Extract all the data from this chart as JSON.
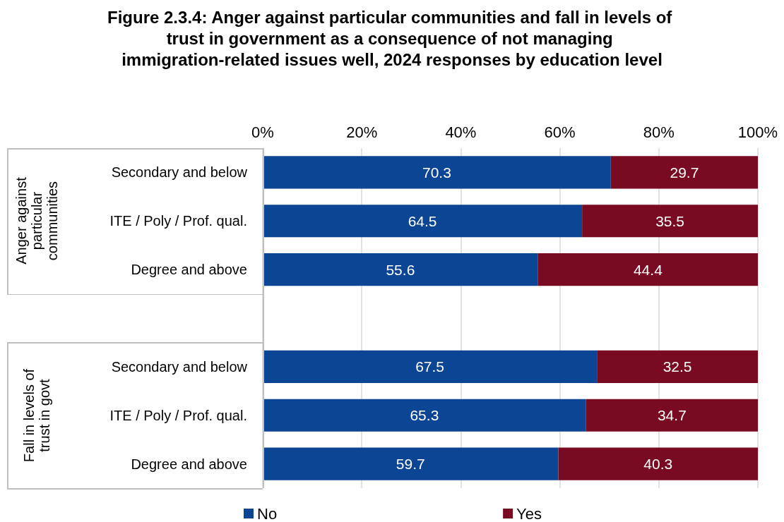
{
  "chart_data": {
    "type": "bar",
    "orientation": "horizontal",
    "stacked": true,
    "title": "Figure 2.3.4: Anger against particular communities and fall in levels of trust in government as a consequence of not managing immigration-related issues well, 2024 responses by education level",
    "categories": [
      "Secondary and below",
      "ITE / Poly / Prof. qual.",
      "Degree and above",
      null,
      "Secondary and below",
      "ITE / Poly / Prof. qual.",
      "Degree and above"
    ],
    "series": [
      {
        "name": "No",
        "color": "#0b4594",
        "values": [
          70.3,
          64.5,
          55.6,
          null,
          67.5,
          65.3,
          59.7
        ]
      },
      {
        "name": "Yes",
        "color": "#780b22",
        "values": [
          29.7,
          35.5,
          44.4,
          null,
          32.5,
          34.7,
          40.3
        ]
      }
    ],
    "xlim": [
      0,
      100
    ],
    "xticks": [
      {
        "value": 0,
        "label": "0%"
      },
      {
        "value": 20,
        "label": "20%"
      },
      {
        "value": 40,
        "label": "40%"
      },
      {
        "value": 60,
        "label": "60%"
      },
      {
        "value": 80,
        "label": "80%"
      },
      {
        "value": 100,
        "label": "100%"
      }
    ],
    "annotations": [
      "Anger against particular communities",
      "Fall in levels of trust in govt"
    ],
    "data_labels": true,
    "grid": "x",
    "legend": "bottom"
  }
}
